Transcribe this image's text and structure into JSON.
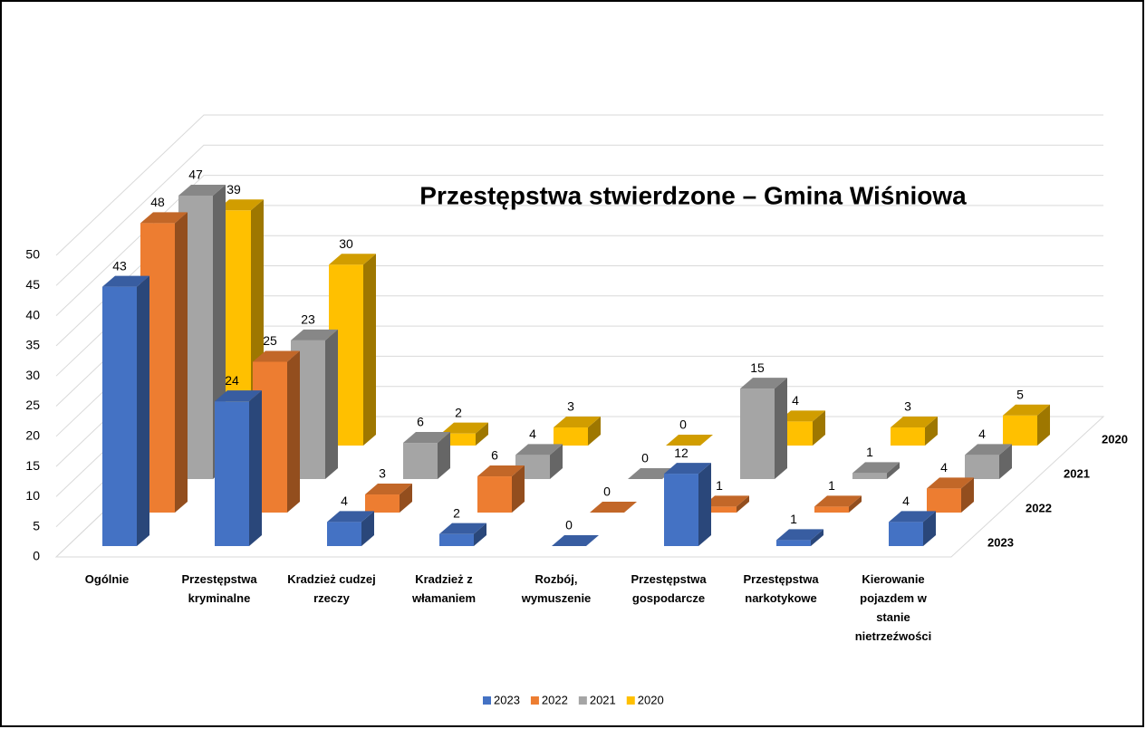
{
  "chart_data": {
    "type": "bar3d",
    "title": "Przestępstwa stwierdzone – Gmina Wiśniowa",
    "categories": [
      "Ogólnie",
      "Przestępstwa kryminalne",
      "Kradzież cudzej rzeczy",
      "Kradzież z włamaniem",
      "Rozbój, wymuszenie",
      "Przestępstwa gospodarcze",
      "Przestępstwa narkotykowe",
      "Kierowanie pojazdem w stanie nietrzeźwości"
    ],
    "series": [
      {
        "name": "2023",
        "color": "#4472c4",
        "values": [
          43,
          24,
          4,
          2,
          0,
          12,
          1,
          4
        ]
      },
      {
        "name": "2022",
        "color": "#ed7d31",
        "values": [
          48,
          25,
          3,
          6,
          0,
          1,
          1,
          4
        ]
      },
      {
        "name": "2021",
        "color": "#a5a5a5",
        "values": [
          47,
          23,
          6,
          4,
          0,
          15,
          1,
          4
        ]
      },
      {
        "name": "2020",
        "color": "#ffc000",
        "values": [
          39,
          30,
          2,
          3,
          0,
          4,
          3,
          5
        ]
      }
    ],
    "ylim": [
      0,
      50
    ],
    "yticks": [
      0,
      5,
      10,
      15,
      20,
      25,
      30,
      35,
      40,
      45,
      50
    ],
    "grid": true,
    "legend": "bottom"
  }
}
